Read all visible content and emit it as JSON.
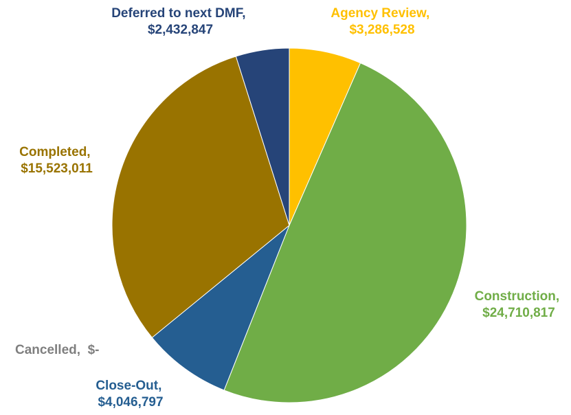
{
  "chart_data": {
    "type": "pie",
    "categories": [
      "Agency Review,",
      "Construction,",
      "Close-Out,",
      "Cancelled,",
      "Completed,",
      "Deferred to next DMF,"
    ],
    "values": [
      3286528,
      24710817,
      4046797,
      0,
      15523011,
      2432847
    ],
    "value_labels": [
      "$3,286,528",
      "$24,710,817",
      "$4,046,797",
      "$-",
      "$15,523,011",
      "$2,432,847"
    ],
    "colors": [
      "#ffc000",
      "#70ad47",
      "#255e91",
      "#7f7f7f",
      "#997300",
      "#264478"
    ]
  }
}
